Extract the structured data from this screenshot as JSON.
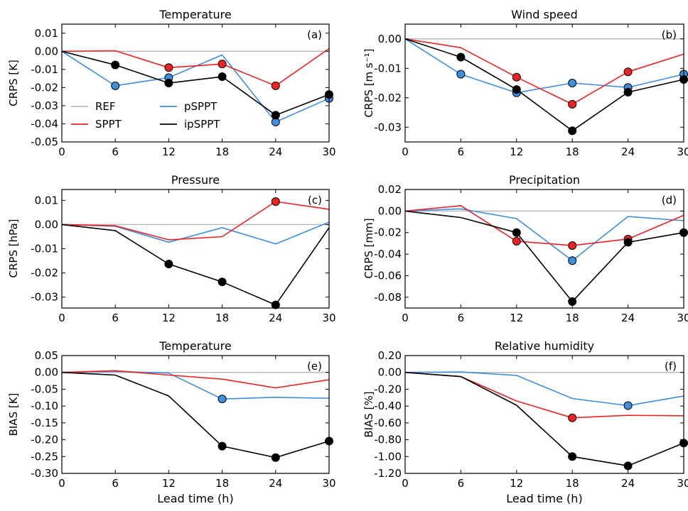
{
  "colors": {
    "REF": "#bbbbbb",
    "SPPT": "#ee2222",
    "pSPPT": "#3d8fe0",
    "ipSPPT": "#000000"
  },
  "legend": {
    "entries": [
      "REF",
      "SPPT",
      "pSPPT",
      "ipSPPT"
    ]
  },
  "xlabel": "Lead time (h)",
  "chart_data": [
    {
      "type": "line",
      "title": "Temperature",
      "ylabel": "CRPS [K]",
      "panel_label": "(a)",
      "x": [
        0,
        6,
        12,
        18,
        24,
        30
      ],
      "xticks": [
        "0",
        "6",
        "12",
        "18",
        "24",
        "30"
      ],
      "ylim": [
        -0.05,
        0.015
      ],
      "yticks": [
        "0.01",
        "0.00",
        "-0.01",
        "-0.02",
        "-0.03",
        "-0.04",
        "-0.05"
      ],
      "ytick_values": [
        0.01,
        0.0,
        -0.01,
        -0.02,
        -0.03,
        -0.04,
        -0.05
      ],
      "series": [
        {
          "name": "REF",
          "values": [
            0,
            0,
            0,
            0,
            0,
            0
          ],
          "markers": []
        },
        {
          "name": "SPPT",
          "values": [
            0,
            0.0003,
            -0.009,
            -0.007,
            -0.019,
            0.0015
          ],
          "markers": [
            2,
            3,
            4
          ]
        },
        {
          "name": "pSPPT",
          "values": [
            0,
            -0.019,
            -0.0145,
            -0.002,
            -0.039,
            -0.026
          ],
          "markers": [
            1,
            2,
            4,
            5
          ]
        },
        {
          "name": "ipSPPT",
          "values": [
            0,
            -0.0075,
            -0.0175,
            -0.014,
            -0.0352,
            -0.0238
          ],
          "markers": [
            1,
            2,
            3,
            4,
            5
          ]
        }
      ]
    },
    {
      "type": "line",
      "title": "Wind speed",
      "ylabel": "CRPS [m s⁻¹]",
      "panel_label": "(b)",
      "x": [
        0,
        6,
        12,
        18,
        24,
        30
      ],
      "xticks": [
        "0",
        "6",
        "12",
        "18",
        "24",
        "30"
      ],
      "ylim": [
        -0.035,
        0.005
      ],
      "yticks": [
        "0.00",
        "-0.01",
        "-0.02",
        "-0.03"
      ],
      "ytick_values": [
        0.0,
        -0.01,
        -0.02,
        -0.03
      ],
      "series": [
        {
          "name": "REF",
          "values": [
            0,
            0,
            0,
            0,
            0,
            0
          ],
          "markers": []
        },
        {
          "name": "SPPT",
          "values": [
            0,
            -0.003,
            -0.013,
            -0.0222,
            -0.0112,
            -0.0052
          ],
          "markers": [
            2,
            3,
            4
          ]
        },
        {
          "name": "pSPPT",
          "values": [
            0,
            -0.012,
            -0.0183,
            -0.015,
            -0.0165,
            -0.012
          ],
          "markers": [
            1,
            2,
            3,
            4,
            5
          ]
        },
        {
          "name": "ipSPPT",
          "values": [
            0,
            -0.0062,
            -0.0172,
            -0.0312,
            -0.0181,
            -0.0138
          ],
          "markers": [
            1,
            2,
            3,
            4,
            5
          ]
        }
      ]
    },
    {
      "type": "line",
      "title": "Pressure",
      "ylabel": "CRPS [hPa]",
      "panel_label": "(c)",
      "x": [
        0,
        6,
        12,
        18,
        24,
        30
      ],
      "xticks": [
        "0",
        "6",
        "12",
        "18",
        "24",
        "30"
      ],
      "ylim": [
        -0.0345,
        0.0145
      ],
      "yticks": [
        "0.01",
        "0.00",
        "-0.01",
        "-0.02",
        "-0.03"
      ],
      "ytick_values": [
        0.01,
        0.0,
        -0.01,
        -0.02,
        -0.03
      ],
      "series": [
        {
          "name": "REF",
          "values": [
            0,
            0,
            0,
            0,
            0,
            0
          ],
          "markers": []
        },
        {
          "name": "SPPT",
          "values": [
            0,
            -0.0005,
            -0.0063,
            -0.005,
            0.0095,
            0.0063
          ],
          "markers": [
            4
          ]
        },
        {
          "name": "pSPPT",
          "values": [
            0,
            -0.0007,
            -0.0073,
            -0.0013,
            -0.008,
            0.001
          ],
          "markers": []
        },
        {
          "name": "ipSPPT",
          "values": [
            0,
            -0.0025,
            -0.0163,
            -0.0237,
            -0.0332,
            -0.0013
          ],
          "markers": [
            2,
            3,
            4
          ]
        }
      ]
    },
    {
      "type": "line",
      "title": "Precipitation",
      "ylabel": "CRPS [mm]",
      "panel_label": "(d)",
      "x": [
        0,
        6,
        12,
        18,
        24,
        30
      ],
      "xticks": [
        "0",
        "6",
        "12",
        "18",
        "24",
        "30"
      ],
      "ylim": [
        -0.09,
        0.02
      ],
      "yticks": [
        "0.02",
        "0.00",
        "-0.02",
        "-0.04",
        "-0.06",
        "-0.08"
      ],
      "ytick_values": [
        0.02,
        0.0,
        -0.02,
        -0.04,
        -0.06,
        -0.08
      ],
      "series": [
        {
          "name": "REF",
          "values": [
            0,
            0,
            0,
            0,
            0,
            0
          ],
          "markers": []
        },
        {
          "name": "SPPT",
          "values": [
            0,
            0.005,
            -0.028,
            -0.032,
            -0.026,
            -0.004
          ],
          "markers": [
            2,
            3,
            4
          ]
        },
        {
          "name": "pSPPT",
          "values": [
            0,
            0.002,
            -0.007,
            -0.046,
            -0.005,
            -0.009
          ],
          "markers": [
            3
          ]
        },
        {
          "name": "ipSPPT",
          "values": [
            0,
            -0.006,
            -0.02,
            -0.084,
            -0.029,
            -0.02
          ],
          "markers": [
            2,
            3,
            4,
            5
          ]
        }
      ]
    },
    {
      "type": "line",
      "title": "Temperature",
      "ylabel": "BIAS [K]",
      "panel_label": "(e)",
      "x": [
        0,
        6,
        12,
        18,
        24,
        30
      ],
      "xticks": [
        "0",
        "6",
        "12",
        "18",
        "24",
        "30"
      ],
      "ylim": [
        -0.3,
        0.05
      ],
      "yticks": [
        "0.05",
        "0.00",
        "-0.05",
        "-0.10",
        "-0.15",
        "-0.20",
        "-0.25",
        "-0.30"
      ],
      "ytick_values": [
        0.05,
        0.0,
        -0.05,
        -0.1,
        -0.15,
        -0.2,
        -0.25,
        -0.3
      ],
      "series": [
        {
          "name": "REF",
          "values": [
            0,
            0,
            0,
            0,
            0,
            0
          ],
          "markers": []
        },
        {
          "name": "SPPT",
          "values": [
            0,
            0.005,
            -0.008,
            -0.02,
            -0.046,
            -0.022
          ],
          "markers": []
        },
        {
          "name": "pSPPT",
          "values": [
            0,
            0.003,
            -0.002,
            -0.079,
            -0.074,
            -0.077
          ],
          "markers": [
            3
          ]
        },
        {
          "name": "ipSPPT",
          "values": [
            0,
            -0.008,
            -0.07,
            -0.219,
            -0.253,
            -0.204
          ],
          "markers": [
            3,
            4,
            5
          ]
        }
      ]
    },
    {
      "type": "line",
      "title": "Relative humidity",
      "ylabel": "BIAS [%]",
      "panel_label": "(f)",
      "x": [
        0,
        6,
        12,
        18,
        24,
        30
      ],
      "xticks": [
        "0",
        "6",
        "12",
        "18",
        "24",
        "30"
      ],
      "ylim": [
        -1.2,
        0.2
      ],
      "yticks": [
        "0.20",
        "0.00",
        "-0.20",
        "-0.40",
        "-0.60",
        "-0.80",
        "-1.00",
        "-1.20"
      ],
      "ytick_values": [
        0.2,
        0.0,
        -0.2,
        -0.4,
        -0.6,
        -0.8,
        -1.0,
        -1.2
      ],
      "series": [
        {
          "name": "REF",
          "values": [
            0,
            0,
            0,
            0,
            0,
            0
          ],
          "markers": []
        },
        {
          "name": "SPPT",
          "values": [
            0,
            -0.05,
            -0.34,
            -0.54,
            -0.51,
            -0.515
          ],
          "markers": [
            3
          ]
        },
        {
          "name": "pSPPT",
          "values": [
            0,
            0.005,
            -0.035,
            -0.31,
            -0.395,
            -0.28
          ],
          "markers": [
            4
          ]
        },
        {
          "name": "ipSPPT",
          "values": [
            0,
            -0.05,
            -0.39,
            -1.0,
            -1.11,
            -0.84
          ],
          "markers": [
            3,
            4,
            5
          ]
        }
      ]
    }
  ]
}
